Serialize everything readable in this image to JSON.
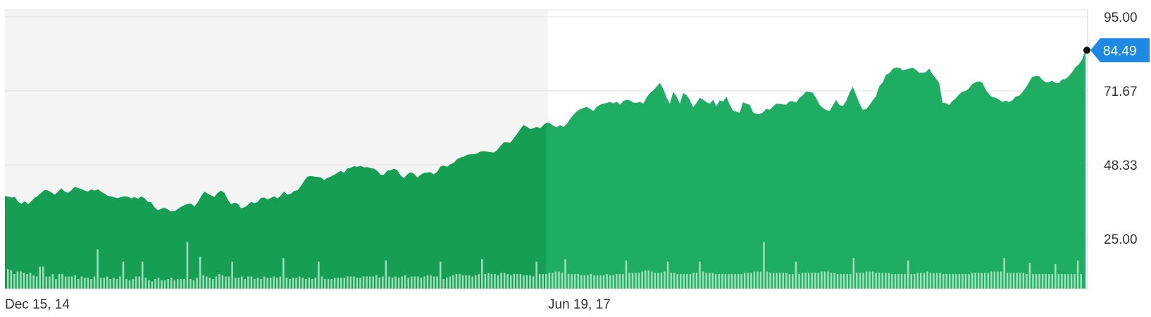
{
  "chart_data": {
    "type": "area",
    "x_tick_labels": [
      "Dec 15, 14",
      "Jun 19, 17"
    ],
    "y_tick_labels": [
      "95.00",
      "71.67",
      "48.33",
      "25.00"
    ],
    "y_ticks": [
      95.0,
      71.67,
      48.33,
      25.0
    ],
    "ylim": [
      1.67,
      95.0
    ],
    "last_value_label": "84.49",
    "last_value": 84.49,
    "price_series": [
      38.5,
      38.3,
      38.0,
      38.2,
      36.6,
      36.0,
      36.8,
      35.9,
      36.9,
      38.0,
      38.6,
      39.6,
      40.4,
      40.2,
      39.6,
      38.9,
      39.9,
      40.9,
      39.9,
      39.5,
      40.3,
      41.4,
      41.0,
      40.7,
      40.2,
      39.9,
      40.6,
      40.2,
      40.6,
      39.8,
      39.2,
      38.5,
      38.4,
      38.0,
      37.8,
      38.2,
      38.4,
      38.3,
      37.7,
      38.2,
      37.6,
      38.4,
      37.8,
      36.6,
      36.5,
      34.9,
      34.0,
      34.5,
      34.8,
      34.2,
      33.6,
      33.7,
      34.4,
      35.1,
      35.6,
      36.0,
      36.1,
      35.2,
      36.5,
      38.4,
      39.9,
      39.2,
      38.7,
      38.2,
      39.5,
      40.2,
      39.5,
      37.4,
      35.9,
      36.4,
      36.1,
      34.6,
      34.9,
      35.6,
      36.6,
      36.2,
      36.6,
      37.9,
      38.0,
      37.4,
      37.9,
      38.4,
      37.7,
      38.7,
      39.9,
      38.9,
      39.2,
      40.1,
      40.3,
      41.6,
      43.3,
      44.6,
      44.8,
      44.6,
      44.5,
      44.4,
      43.5,
      44.2,
      44.6,
      45.1,
      45.8,
      46.4,
      45.8,
      47.2,
      47.4,
      47.9,
      47.7,
      48.0,
      47.5,
      47.6,
      47.3,
      47.1,
      46.4,
      45.2,
      45.2,
      46.5,
      46.6,
      47.1,
      46.6,
      45.0,
      44.1,
      45.3,
      46.0,
      45.5,
      44.3,
      45.1,
      45.8,
      45.9,
      46.0,
      45.3,
      46.1,
      47.8,
      48.1,
      47.7,
      48.5,
      49.0,
      50.1,
      50.6,
      50.9,
      51.5,
      51.6,
      51.7,
      51.9,
      52.5,
      52.6,
      52.5,
      52.3,
      52.2,
      52.9,
      54.2,
      55.4,
      55.4,
      55.3,
      56.6,
      58.0,
      59.6,
      60.9,
      60.3,
      59.6,
      59.9,
      60.3,
      59.8,
      60.9,
      61.7,
      61.4,
      60.6,
      60.2,
      60.9,
      60.3,
      61.3,
      62.8,
      64.2,
      65.2,
      65.9,
      66.3,
      66.6,
      66.0,
      65.3,
      66.6,
      67.3,
      67.6,
      67.9,
      68.2,
      67.7,
      68.3,
      67.3,
      68.5,
      68.9,
      68.6,
      68.0,
      67.9,
      68.2,
      67.6,
      69.6,
      71.0,
      71.8,
      73.0,
      74.2,
      72.3,
      69.5,
      67.6,
      71.4,
      69.9,
      67.6,
      71.0,
      70.3,
      68.8,
      66.5,
      67.9,
      69.5,
      68.9,
      68.1,
      67.6,
      68.9,
      66.8,
      68.7,
      68.3,
      69.8,
      67.3,
      65.4,
      65.1,
      64.8,
      68.1,
      67.6,
      67.3,
      64.9,
      64.4,
      64.4,
      64.9,
      66.0,
      65.7,
      66.7,
      67.6,
      67.6,
      67.4,
      67.3,
      68.4,
      68.4,
      68.0,
      69.5,
      70.3,
      71.5,
      71.3,
      71.1,
      69.3,
      67.3,
      66.3,
      65.6,
      65.3,
      67.0,
      68.8,
      67.2,
      66.9,
      68.4,
      71.0,
      73.0,
      70.4,
      67.8,
      65.7,
      65.9,
      67.1,
      68.7,
      70.0,
      73.2,
      74.3,
      76.8,
      77.2,
      78.6,
      79.0,
      79.0,
      78.2,
      78.4,
      78.7,
      79.0,
      78.3,
      77.4,
      77.4,
      77.6,
      78.7,
      76.9,
      75.6,
      74.1,
      67.9,
      67.8,
      67.2,
      68.5,
      69.3,
      70.6,
      71.4,
      71.7,
      72.5,
      73.9,
      74.4,
      74.7,
      74.2,
      72.0,
      70.6,
      69.7,
      69.5,
      68.9,
      68.2,
      68.6,
      68.1,
      68.7,
      69.9,
      70.1,
      71.2,
      72.6,
      74.4,
      76.1,
      76.3,
      76.4,
      75.2,
      74.4,
      74.4,
      74.9,
      74.1,
      74.2,
      75.3,
      75.4,
      76.3,
      77.6,
      79.2,
      80.0,
      81.6,
      84.49
    ],
    "volume_bars": [
      16,
      15,
      12,
      14,
      14,
      13,
      12,
      13,
      11,
      10,
      14,
      18,
      10,
      10,
      12,
      8,
      12,
      12,
      10,
      10,
      10,
      11,
      8,
      10,
      9,
      9,
      8,
      10,
      9,
      9,
      9,
      10,
      8,
      9,
      8,
      10,
      10,
      8,
      7,
      8,
      10,
      10,
      9,
      9,
      7,
      6,
      8,
      9,
      7,
      7,
      8,
      9,
      7,
      8,
      8,
      8,
      9,
      8,
      7,
      9,
      10,
      11,
      10,
      9,
      8,
      10,
      12,
      11,
      10,
      10,
      9,
      9,
      9,
      10,
      8,
      10,
      10,
      8,
      9,
      8,
      10,
      9,
      9,
      10,
      9,
      10,
      8,
      9,
      8,
      9,
      9,
      10,
      9,
      8,
      9,
      8,
      9,
      10,
      10,
      8,
      8,
      8,
      9,
      9,
      9,
      9,
      10,
      10,
      10,
      9,
      9,
      10,
      10,
      10,
      10,
      11,
      9,
      10,
      9,
      10,
      9,
      10,
      9,
      10,
      11,
      9,
      10,
      10,
      10,
      9,
      10,
      11,
      11,
      10,
      10,
      9,
      8,
      9,
      10,
      11,
      12,
      12,
      11,
      11,
      11,
      10,
      11,
      12,
      12,
      12,
      13,
      12,
      12,
      11,
      13,
      13,
      12,
      11,
      12,
      12,
      12,
      11,
      11,
      11,
      10,
      11,
      12,
      12,
      12,
      13,
      13,
      14,
      14,
      13,
      13,
      12,
      12,
      12,
      12,
      11,
      11,
      11,
      12,
      11,
      11,
      11,
      11,
      12,
      11,
      11,
      12,
      12,
      12,
      12,
      13,
      13,
      13,
      13,
      14,
      15,
      15,
      14,
      13,
      13,
      13,
      14,
      13,
      13,
      13,
      12,
      12,
      12,
      12,
      12,
      13,
      13,
      14,
      14,
      13,
      13,
      13,
      12,
      12,
      12,
      12,
      12,
      12,
      12,
      12,
      12,
      13,
      13,
      13,
      14,
      14,
      14,
      14,
      14,
      13,
      13,
      13,
      13,
      13,
      13,
      12,
      12,
      12,
      12,
      13,
      13,
      13,
      13,
      13,
      13,
      14,
      14,
      14,
      13,
      13,
      12,
      12,
      12,
      12,
      12,
      13,
      13,
      13,
      13,
      14,
      14,
      14,
      13,
      13,
      13,
      13,
      13,
      12,
      12,
      12,
      12,
      12,
      12,
      12,
      12,
      13,
      13,
      13,
      14,
      13,
      13,
      13,
      13,
      12,
      12,
      12,
      12,
      12,
      12,
      12,
      12,
      12,
      13,
      13,
      13,
      13,
      13,
      13,
      14,
      14,
      14,
      14,
      14,
      13,
      13,
      13,
      13,
      13,
      13,
      12,
      12,
      12,
      12,
      12,
      12,
      12,
      12,
      12,
      12,
      12,
      12,
      12,
      12,
      12,
      12,
      12,
      12
    ],
    "volume_spikes": [
      [
        10,
        18
      ],
      [
        28,
        32
      ],
      [
        36,
        22
      ],
      [
        42,
        22
      ],
      [
        56,
        38
      ],
      [
        60,
        26
      ],
      [
        70,
        22
      ],
      [
        86,
        25
      ],
      [
        97,
        22
      ],
      [
        118,
        23
      ],
      [
        135,
        22
      ],
      [
        148,
        24
      ],
      [
        165,
        22
      ],
      [
        174,
        24
      ],
      [
        193,
        23
      ],
      [
        206,
        22
      ],
      [
        216,
        22
      ],
      [
        236,
        38
      ],
      [
        246,
        22
      ],
      [
        264,
        25
      ],
      [
        281,
        23
      ],
      [
        311,
        25
      ],
      [
        319,
        21
      ],
      [
        327,
        20
      ],
      [
        334,
        23
      ]
    ],
    "colors": {
      "area_fill": "#1fad63",
      "area_fill_shaded": "#179e55",
      "volume_bar": "#9fe0b9",
      "grid": "#e2e2e2",
      "shaded_region": "#f4f4f4",
      "last_badge": "#1e88e5",
      "axis_text": "#333333"
    },
    "shaded_range_end_fraction": 0.5,
    "grid": true
  }
}
